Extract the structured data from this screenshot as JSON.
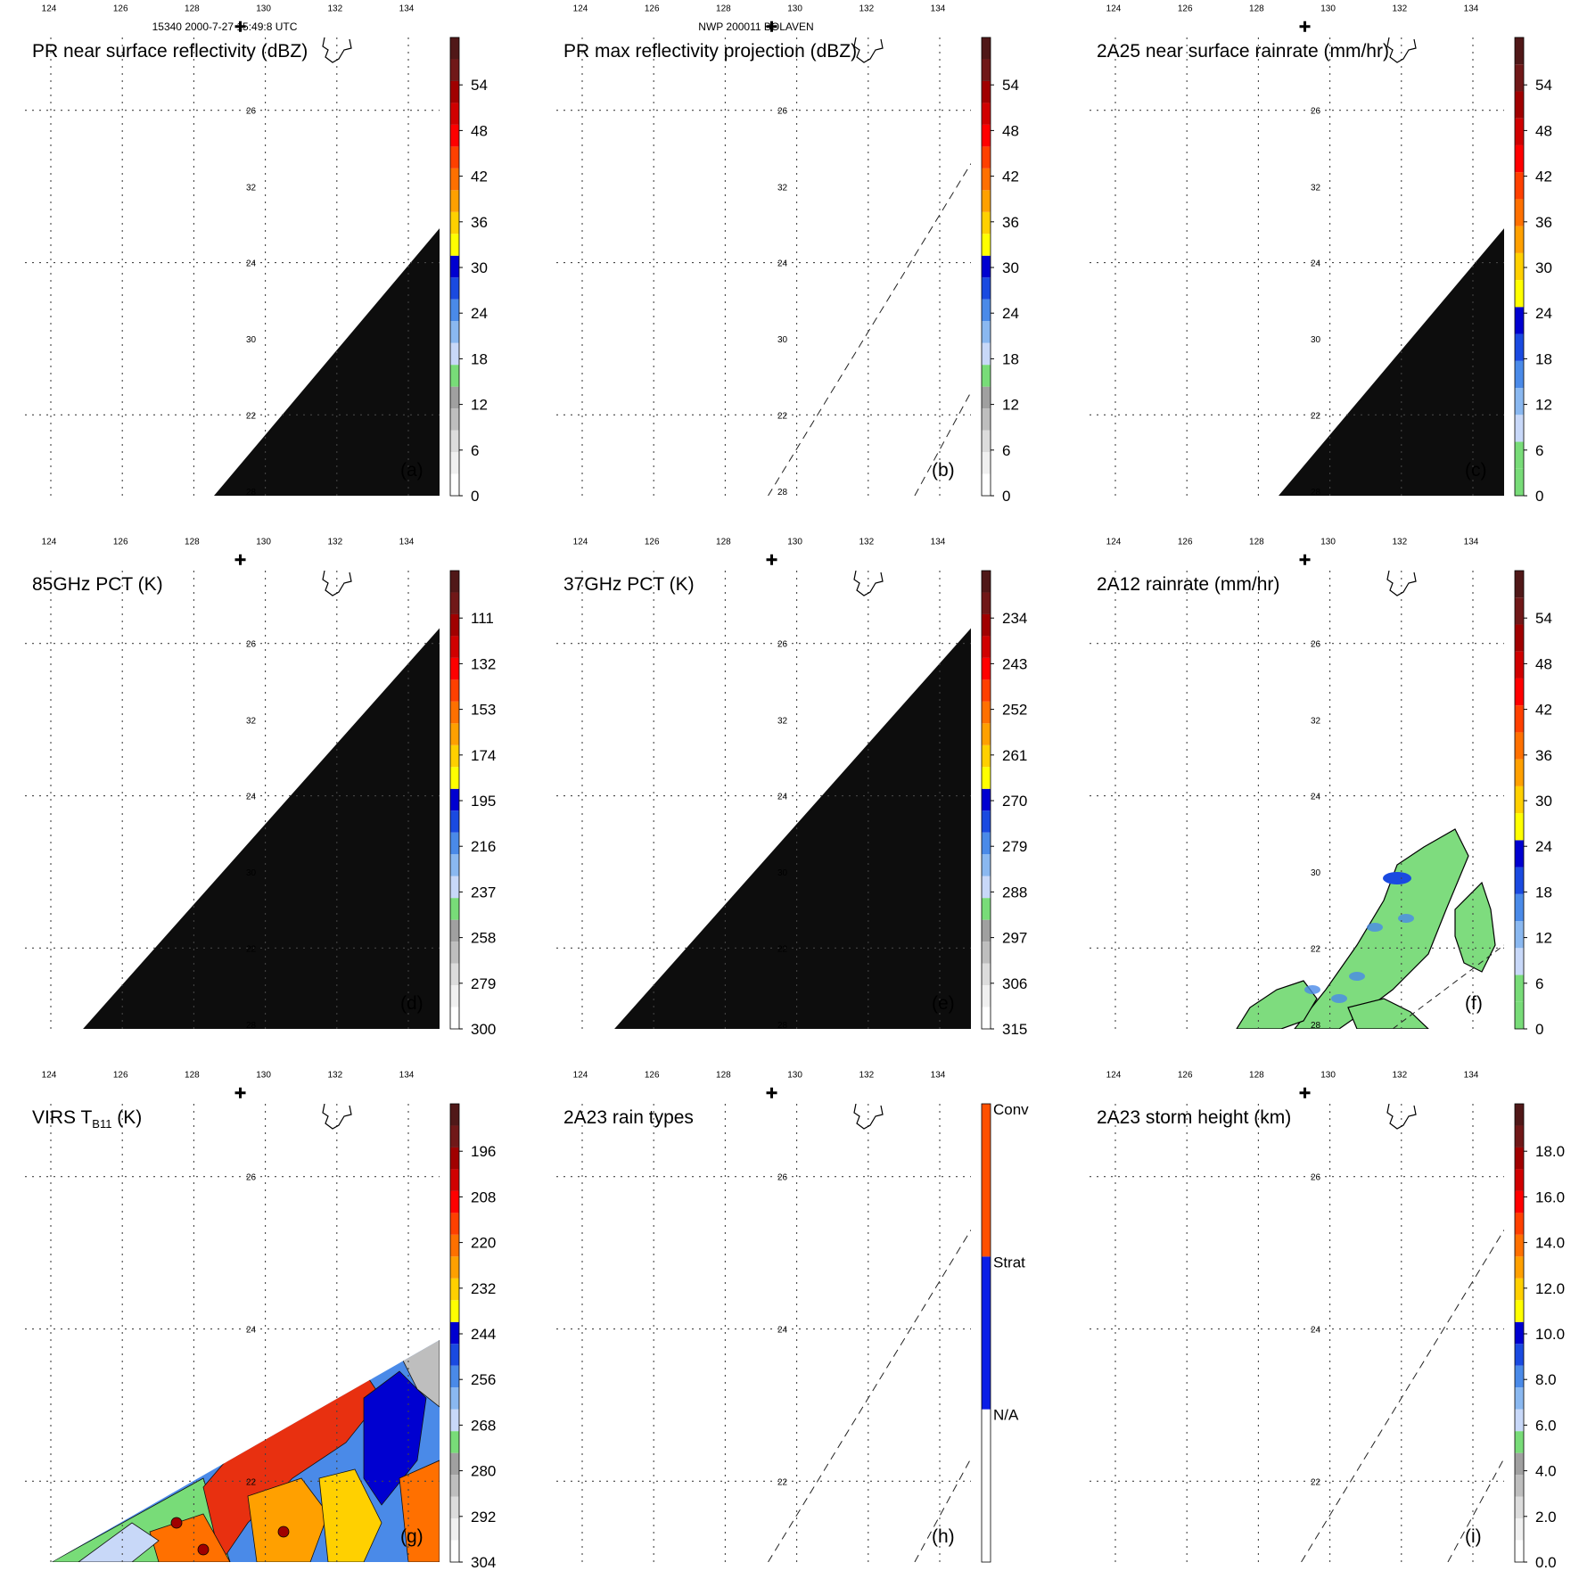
{
  "header": {
    "orbit_time": "15340 2000-7-27 15:49:8 UTC",
    "storm": "NWP 200011 BOLAVEN"
  },
  "lon_labels": [
    "124",
    "126",
    "128",
    "130",
    "132",
    "134"
  ],
  "lat_labels": [
    "22",
    "24",
    "26",
    "28",
    "30",
    "32"
  ],
  "panels": [
    {
      "title": "PR near surface reflectivity (dBZ)",
      "letter": "(a)",
      "swath": "pr_filled",
      "colorbar": {
        "ticks": [
          "0",
          "6",
          "12",
          "18",
          "24",
          "30",
          "36",
          "42",
          "48",
          "54"
        ],
        "colors": [
          "#ffffff",
          "#f0f0f0",
          "#dcdcdc",
          "#bebebe",
          "#a0a0a0",
          "#78dc78",
          "#c8d8f8",
          "#8ab8f0",
          "#4a8ae8",
          "#1a4ae0",
          "#0000d0",
          "#ffff00",
          "#ffd000",
          "#ffa000",
          "#ff7000",
          "#ff4000",
          "#ff0000",
          "#d00000",
          "#a00000",
          "#701818",
          "#501818"
        ]
      }
    },
    {
      "title": "PR max reflectivity projection (dBZ)",
      "letter": "(b)",
      "swath": "pr_dashed",
      "colorbar": {
        "ticks": [
          "0",
          "6",
          "12",
          "18",
          "24",
          "30",
          "36",
          "42",
          "48",
          "54"
        ],
        "colors": [
          "#ffffff",
          "#f0f0f0",
          "#dcdcdc",
          "#bebebe",
          "#a0a0a0",
          "#78dc78",
          "#c8d8f8",
          "#8ab8f0",
          "#4a8ae8",
          "#1a4ae0",
          "#0000d0",
          "#ffff00",
          "#ffd000",
          "#ffa000",
          "#ff7000",
          "#ff4000",
          "#ff0000",
          "#d00000",
          "#a00000",
          "#701818",
          "#501818"
        ]
      }
    },
    {
      "title": "2A25 near surface rainrate (mm/hr)",
      "letter": "(c)",
      "swath": "pr_filled",
      "colorbar": {
        "ticks": [
          "0",
          "6",
          "12",
          "18",
          "24",
          "30",
          "36",
          "42",
          "48",
          "54"
        ],
        "colors": [
          "#78dc78",
          "#78dc78",
          "#c8d8f8",
          "#8ab8f0",
          "#4a8ae8",
          "#1a4ae0",
          "#0000d0",
          "#ffff00",
          "#ffd000",
          "#ffa000",
          "#ff7000",
          "#ff4000",
          "#ff0000",
          "#d00000",
          "#a00000",
          "#701818",
          "#501818"
        ]
      }
    },
    {
      "title": "85GHz PCT (K)",
      "letter": "(d)",
      "swath": "tmi_filled",
      "colorbar": {
        "ticks": [
          "300",
          "279",
          "258",
          "237",
          "216",
          "195",
          "174",
          "153",
          "132",
          "111"
        ],
        "colors": [
          "#ffffff",
          "#f0f0f0",
          "#dcdcdc",
          "#bebebe",
          "#a0a0a0",
          "#78dc78",
          "#c8d8f8",
          "#8ab8f0",
          "#4a8ae8",
          "#1a4ae0",
          "#0000d0",
          "#ffff00",
          "#ffd000",
          "#ffa000",
          "#ff7000",
          "#ff4000",
          "#ff0000",
          "#d00000",
          "#a00000",
          "#701818",
          "#501818"
        ]
      }
    },
    {
      "title": "37GHz PCT (K)",
      "letter": "(e)",
      "swath": "tmi_filled",
      "colorbar": {
        "ticks": [
          "315",
          "306",
          "297",
          "288",
          "279",
          "270",
          "261",
          "252",
          "243",
          "234"
        ],
        "colors": [
          "#ffffff",
          "#f0f0f0",
          "#dcdcdc",
          "#bebebe",
          "#a0a0a0",
          "#78dc78",
          "#c8d8f8",
          "#8ab8f0",
          "#4a8ae8",
          "#1a4ae0",
          "#0000d0",
          "#ffff00",
          "#ffd000",
          "#ffa000",
          "#ff7000",
          "#ff4000",
          "#ff0000",
          "#d00000",
          "#a00000",
          "#701818",
          "#501818"
        ]
      }
    },
    {
      "title": "2A12 rainrate (mm/hr)",
      "letter": "(f)",
      "swath": "tmi_rain",
      "colorbar": {
        "ticks": [
          "0",
          "6",
          "12",
          "18",
          "24",
          "30",
          "36",
          "42",
          "48",
          "54"
        ],
        "colors": [
          "#78dc78",
          "#78dc78",
          "#c8d8f8",
          "#8ab8f0",
          "#4a8ae8",
          "#1a4ae0",
          "#0000d0",
          "#ffff00",
          "#ffd000",
          "#ffa000",
          "#ff7000",
          "#ff4000",
          "#ff0000",
          "#d00000",
          "#a00000",
          "#701818",
          "#501818"
        ]
      }
    },
    {
      "title": "VIRS T",
      "title_sub": "B11",
      "title_tail": " (K)",
      "letter": "(g)",
      "swath": "virs",
      "colorbar": {
        "ticks": [
          "304",
          "292",
          "280",
          "268",
          "256",
          "244",
          "232",
          "220",
          "208",
          "196"
        ],
        "colors": [
          "#ffffff",
          "#f0f0f0",
          "#dcdcdc",
          "#bebebe",
          "#a0a0a0",
          "#78dc78",
          "#c8d8f8",
          "#8ab8f0",
          "#4a8ae8",
          "#1a4ae0",
          "#0000d0",
          "#ffff00",
          "#ffd000",
          "#ffa000",
          "#ff7000",
          "#ff4000",
          "#ff0000",
          "#d00000",
          "#a00000",
          "#701818",
          "#501818"
        ]
      }
    },
    {
      "title": "2A23 rain types",
      "letter": "(h)",
      "swath": "pr_dashed",
      "colorbar": {
        "categories": [
          "N/A",
          "Strat",
          "Conv"
        ],
        "colors": [
          "#ffffff",
          "#0a1ee6",
          "#ff5000"
        ]
      }
    },
    {
      "title": "2A23 storm height (km)",
      "letter": "(i)",
      "swath": "pr_dashed",
      "colorbar": {
        "ticks": [
          "0.0",
          "2.0",
          "4.0",
          "6.0",
          "8.0",
          "10.0",
          "12.0",
          "14.0",
          "16.0",
          "18.0"
        ],
        "colors": [
          "#ffffff",
          "#f0f0f0",
          "#dcdcdc",
          "#bebebe",
          "#a0a0a0",
          "#78dc78",
          "#c8d8f8",
          "#8ab8f0",
          "#4a8ae8",
          "#1a4ae0",
          "#0000d0",
          "#ffff00",
          "#ffd000",
          "#ffa000",
          "#ff7000",
          "#ff4000",
          "#ff0000",
          "#d00000",
          "#a00000",
          "#701818",
          "#501818"
        ]
      }
    }
  ]
}
